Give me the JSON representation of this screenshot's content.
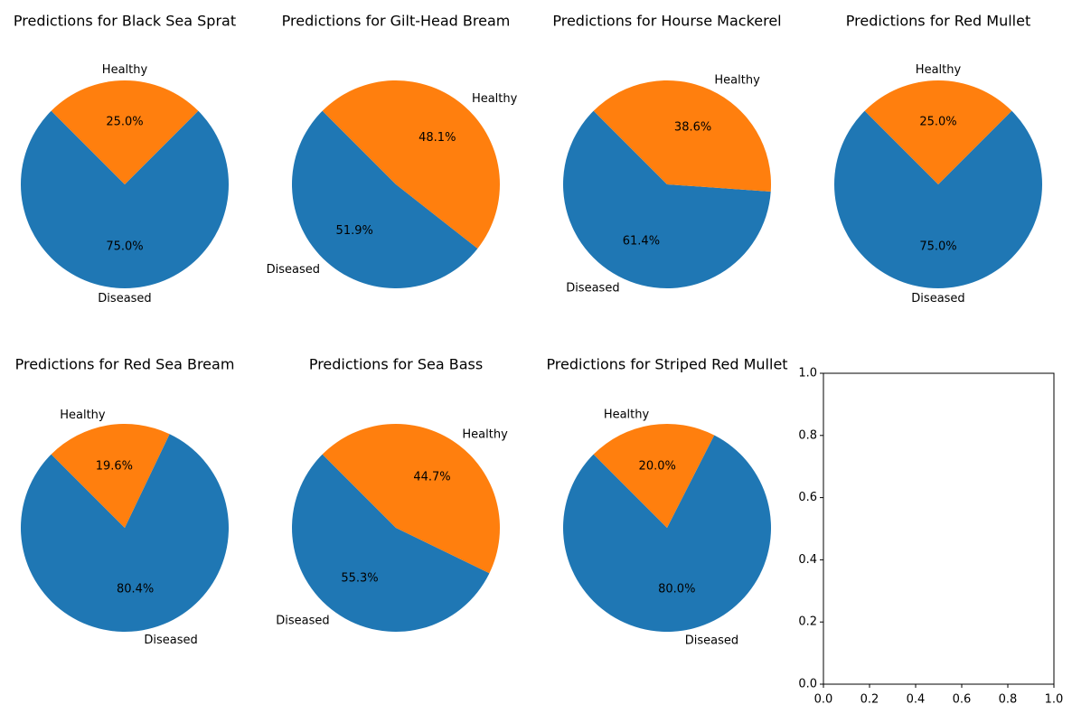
{
  "chart_data": [
    {
      "type": "pie",
      "title": "Predictions for Black Sea Sprat",
      "labels": [
        "Diseased",
        "Healthy"
      ],
      "values": [
        75.0,
        25.0
      ],
      "percent_labels": [
        "75.0%",
        "25.0%"
      ],
      "colors": [
        "#1f77b4",
        "#ff7f0e"
      ]
    },
    {
      "type": "pie",
      "title": "Predictions for Gilt-Head Bream",
      "labels": [
        "Diseased",
        "Healthy"
      ],
      "values": [
        51.9,
        48.1
      ],
      "percent_labels": [
        "51.9%",
        "48.1%"
      ],
      "colors": [
        "#1f77b4",
        "#ff7f0e"
      ]
    },
    {
      "type": "pie",
      "title": "Predictions for Hourse Mackerel",
      "labels": [
        "Diseased",
        "Healthy"
      ],
      "values": [
        61.4,
        38.6
      ],
      "percent_labels": [
        "61.4%",
        "38.6%"
      ],
      "colors": [
        "#1f77b4",
        "#ff7f0e"
      ]
    },
    {
      "type": "pie",
      "title": "Predictions for Red Mullet",
      "labels": [
        "Diseased",
        "Healthy"
      ],
      "values": [
        75.0,
        25.0
      ],
      "percent_labels": [
        "75.0%",
        "25.0%"
      ],
      "colors": [
        "#1f77b4",
        "#ff7f0e"
      ]
    },
    {
      "type": "pie",
      "title": "Predictions for Red Sea Bream",
      "labels": [
        "Diseased",
        "Healthy"
      ],
      "values": [
        80.4,
        19.6
      ],
      "percent_labels": [
        "80.4%",
        "19.6%"
      ],
      "colors": [
        "#1f77b4",
        "#ff7f0e"
      ]
    },
    {
      "type": "pie",
      "title": "Predictions for Sea Bass",
      "labels": [
        "Diseased",
        "Healthy"
      ],
      "values": [
        55.3,
        44.7
      ],
      "percent_labels": [
        "55.3%",
        "44.7%"
      ],
      "colors": [
        "#1f77b4",
        "#ff7f0e"
      ]
    },
    {
      "type": "pie",
      "title": "Predictions for Striped Red Mullet",
      "labels": [
        "Diseased",
        "Healthy"
      ],
      "values": [
        80.0,
        20.0
      ],
      "percent_labels": [
        "80.0%",
        "20.0%"
      ],
      "colors": [
        "#1f77b4",
        "#ff7f0e"
      ]
    },
    {
      "type": "scatter",
      "title": "",
      "xlim": [
        0.0,
        1.0
      ],
      "ylim": [
        0.0,
        1.0
      ],
      "x_ticks": [
        "0.0",
        "0.2",
        "0.4",
        "0.6",
        "0.8",
        "1.0"
      ],
      "y_ticks": [
        "0.0",
        "0.2",
        "0.4",
        "0.6",
        "0.8",
        "1.0"
      ],
      "series": []
    }
  ]
}
